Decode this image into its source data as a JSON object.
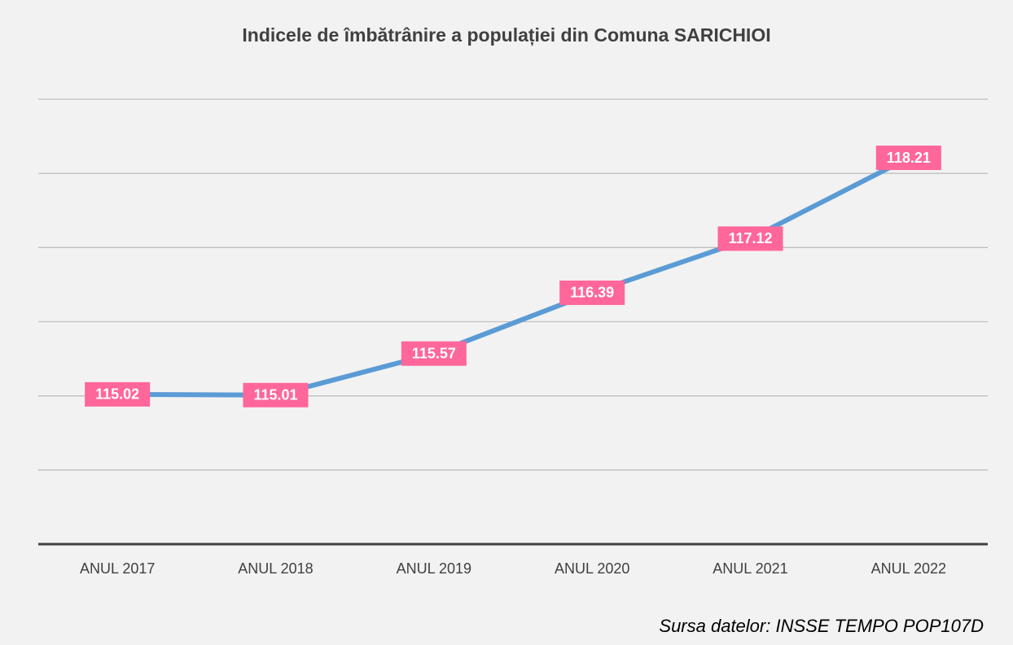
{
  "chart_data": {
    "type": "line",
    "title": "Indicele de îmbătrânire a populației din Comuna SARICHIOI",
    "categories": [
      "ANUL 2017",
      "ANUL 2018",
      "ANUL 2019",
      "ANUL 2020",
      "ANUL 2021",
      "ANUL 2022"
    ],
    "series": [
      {
        "name": "Indicele de îmbătrânire",
        "color": "#5b9bd5",
        "values": [
          115.02,
          115.01,
          115.57,
          116.39,
          117.12,
          118.21
        ]
      }
    ],
    "label_color": "#ff6699",
    "ylim": [
      113,
      119
    ],
    "yticks": [
      113,
      114,
      115,
      116,
      117,
      118,
      119
    ],
    "grid": true,
    "source": "Sursa datelor: INSSE TEMPO POP107D"
  }
}
